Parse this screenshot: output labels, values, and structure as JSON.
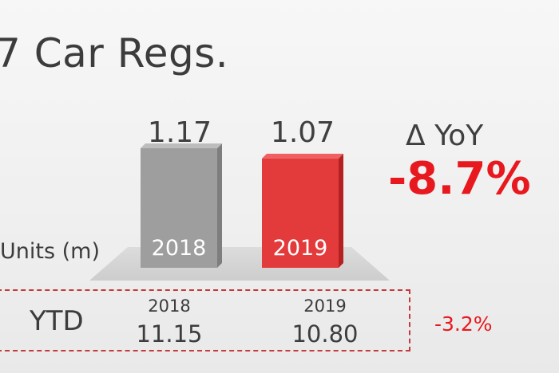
{
  "title": "7 Car Regs.",
  "units_label": "Units (m)",
  "delta": {
    "label": "Δ YoY",
    "value": "-8.7%"
  },
  "chart_data": {
    "type": "bar",
    "title": "7 Car Regs.",
    "ylabel": "Units (m)",
    "categories": [
      "2018",
      "2019"
    ],
    "values": [
      1.17,
      1.07
    ],
    "value_labels": [
      "1.17",
      "1.07"
    ],
    "colors": [
      "#9e9e9e",
      "#e33b3b"
    ],
    "ylim": [
      0,
      1.17
    ]
  },
  "ytd": {
    "label": "YTD",
    "columns": [
      {
        "year": "2018",
        "value": "11.15"
      },
      {
        "year": "2019",
        "value": "10.80"
      }
    ],
    "delta": "-3.2%"
  },
  "colors": {
    "accent_red": "#e8191e",
    "bar_gray": "#9e9e9e",
    "bar_red": "#e33b3b",
    "text": "#3c3c3c"
  }
}
